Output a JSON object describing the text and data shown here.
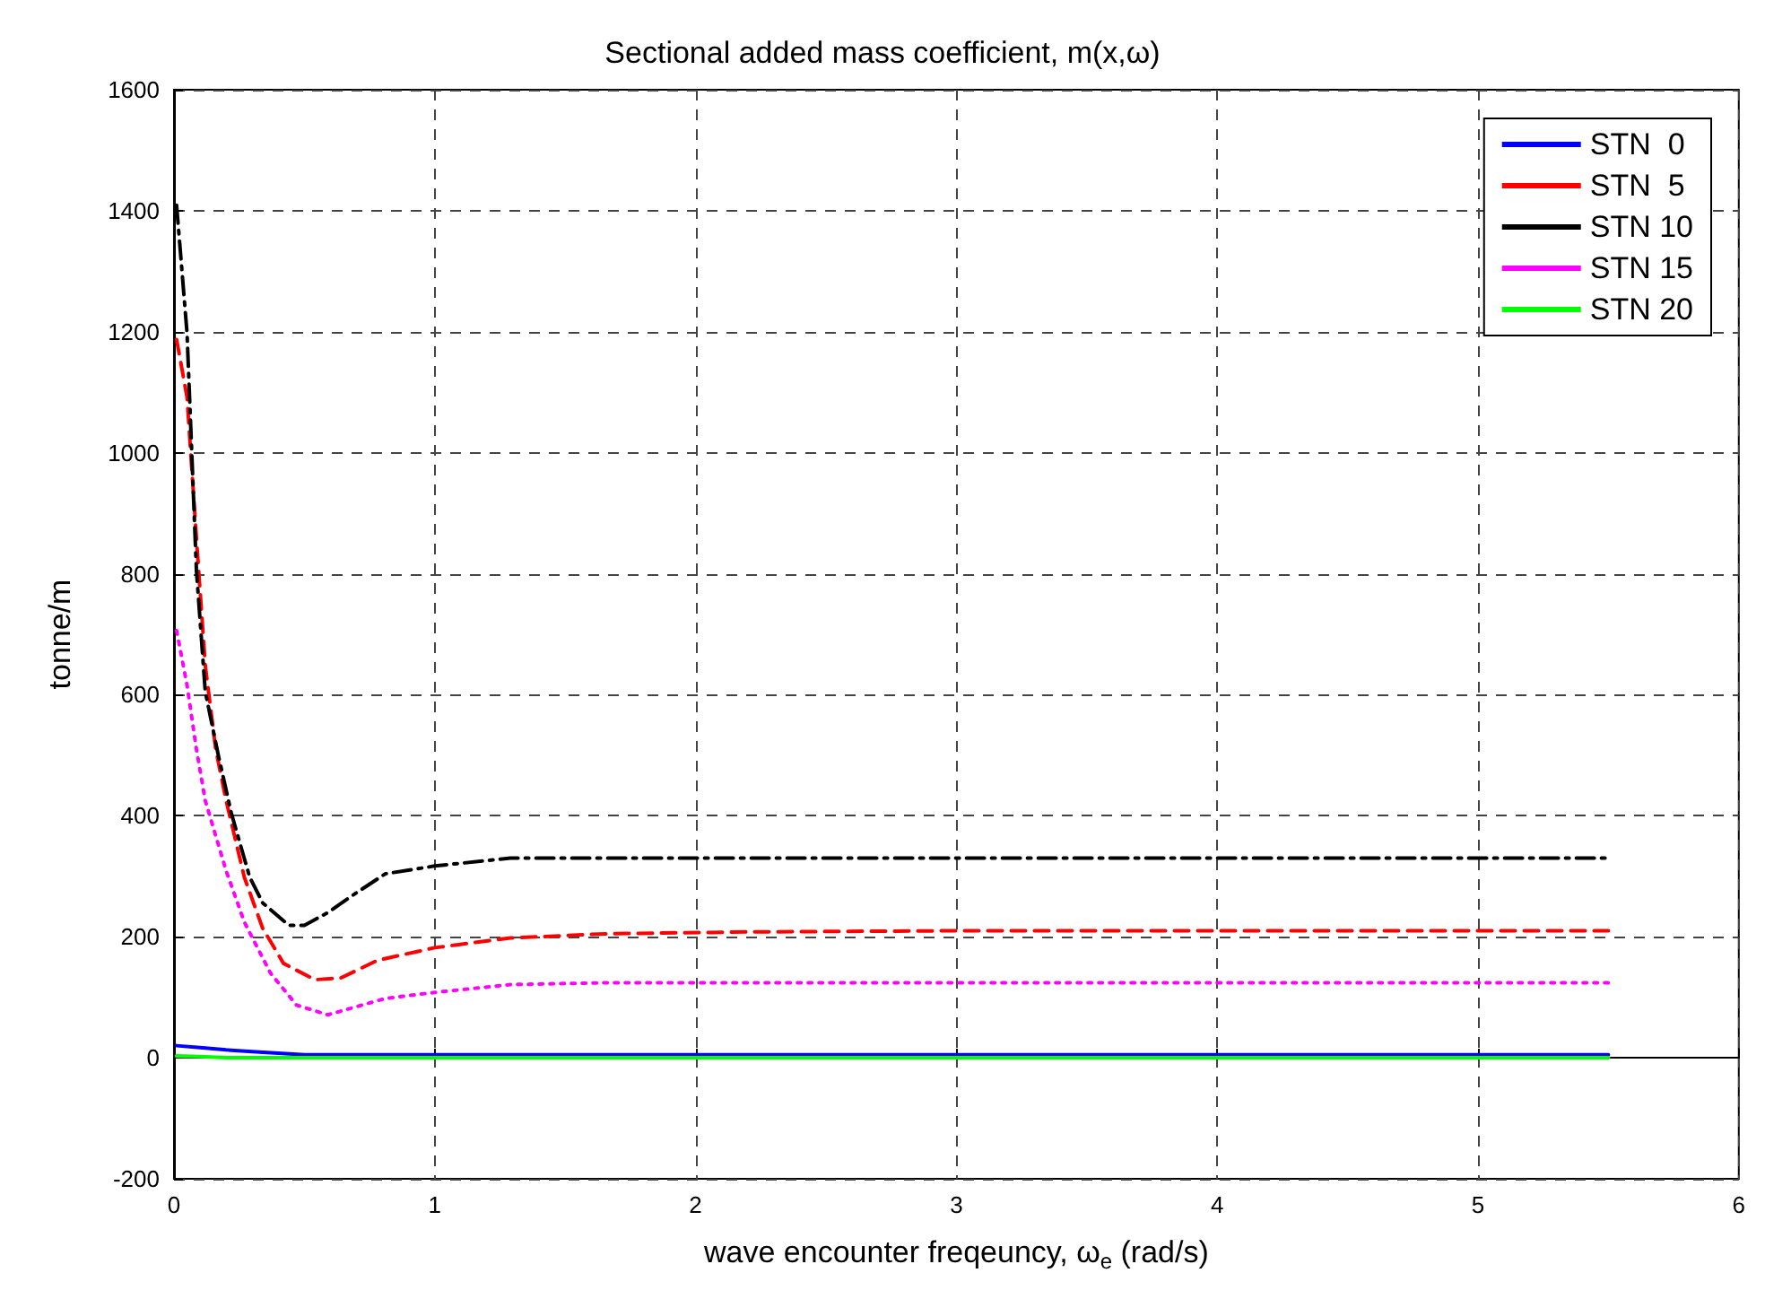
{
  "chart_data": {
    "type": "line",
    "title": "Sectional added mass coefficient, m(x,ω)",
    "xlabel": "wave encounter freqeuncy, ω$_{e}$ (rad/s)",
    "ylabel": "tonne/m",
    "xlim": [
      0,
      6
    ],
    "xticks": [
      0,
      1,
      2,
      3,
      4,
      5,
      6
    ],
    "ylim": [
      -200,
      1600
    ],
    "yticks": [
      -200,
      0,
      200,
      400,
      600,
      800,
      1000,
      1200,
      1400,
      1600
    ],
    "grid": true,
    "legend": "top right",
    "marker": "none",
    "series": [
      {
        "name": "STN  0",
        "color": "#0000ff",
        "line_style": "solid",
        "x": [
          0.01,
          0.1,
          0.2,
          0.3,
          0.5,
          1,
          2,
          3,
          4,
          5,
          5.5
        ],
        "values": [
          20,
          17,
          13,
          10,
          5,
          5,
          5,
          5,
          5,
          5,
          5
        ]
      },
      {
        "name": "STN  5",
        "color": "#ff0000",
        "line_style": "dashed",
        "x": [
          0.01,
          0.05,
          0.086,
          0.12,
          0.16,
          0.2,
          0.27,
          0.34,
          0.42,
          0.54,
          0.64,
          0.78,
          1.0,
          1.29,
          1.66,
          2.2,
          3,
          4,
          5,
          5.5
        ],
        "values": [
          1187,
          1092,
          859,
          648,
          510,
          425,
          298,
          214,
          156,
          129,
          132,
          161,
          182,
          198,
          205,
          208,
          210,
          210,
          210,
          210
        ]
      },
      {
        "name": "STN 10",
        "color": "#000000",
        "line_style": "dashdot",
        "x": [
          0.01,
          0.05,
          0.086,
          0.12,
          0.17,
          0.22,
          0.29,
          0.34,
          0.44,
          0.5,
          0.59,
          0.68,
          0.81,
          1.0,
          1.29,
          1.54,
          2,
          3,
          4,
          5,
          5.5
        ],
        "values": [
          1409,
          1198,
          806,
          605,
          500,
          404,
          299,
          256,
          219,
          219,
          240,
          267,
          304,
          317,
          330,
          330,
          330,
          330,
          330,
          330,
          330
        ]
      },
      {
        "name": "STN 15",
        "color": "#ff00ff",
        "line_style": "dotted",
        "x": [
          0.01,
          0.05,
          0.086,
          0.12,
          0.2,
          0.27,
          0.37,
          0.47,
          0.59,
          0.81,
          1.0,
          1.29,
          1.66,
          2,
          3,
          4,
          5,
          5.5
        ],
        "values": [
          706,
          616,
          510,
          425,
          309,
          224,
          140,
          87,
          71,
          98,
          108,
          121,
          124,
          124,
          124,
          124,
          124,
          124
        ]
      },
      {
        "name": "STN 20",
        "color": "#00ff00",
        "line_style": "solid",
        "x": [
          0.01,
          0.1,
          0.2,
          0.5,
          1,
          2,
          3,
          4,
          5,
          5.5
        ],
        "values": [
          3,
          2,
          0,
          0,
          0,
          0,
          0,
          0,
          0,
          0
        ]
      }
    ]
  }
}
